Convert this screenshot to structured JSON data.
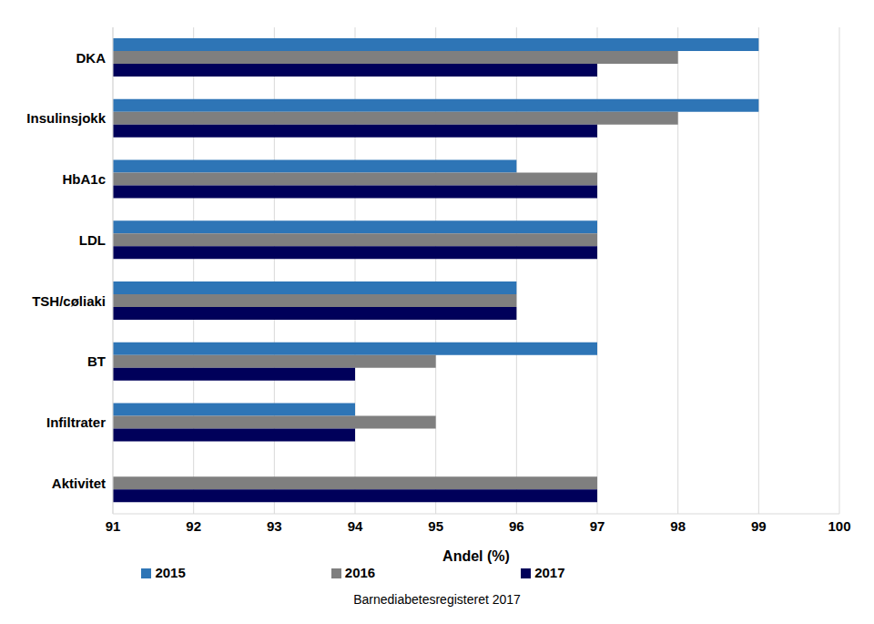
{
  "chart_data": {
    "type": "bar",
    "orientation": "horizontal",
    "categories": [
      "DKA",
      "Insulinsjokk",
      "HbA1c",
      "LDL",
      "TSH/cøliaki",
      "BT",
      "Infiltrater",
      "Aktivitet"
    ],
    "series": [
      {
        "name": "2015",
        "color": "#2e75b6",
        "values": [
          99,
          99,
          96,
          97,
          96,
          97,
          94,
          null
        ]
      },
      {
        "name": "2016",
        "color": "#7f7f7f",
        "values": [
          98,
          98,
          97,
          97,
          96,
          95,
          95,
          97
        ]
      },
      {
        "name": "2017",
        "color": "#00005a",
        "values": [
          97,
          97,
          97,
          97,
          96,
          94,
          94,
          97
        ]
      }
    ],
    "x_label": "Andel (%)",
    "xlim": [
      91,
      100
    ],
    "xticks": [
      91,
      92,
      93,
      94,
      95,
      96,
      97,
      98,
      99,
      100
    ],
    "grid": true,
    "legend": "bottom",
    "caption": "Barnediabetesregisteret 2017"
  }
}
